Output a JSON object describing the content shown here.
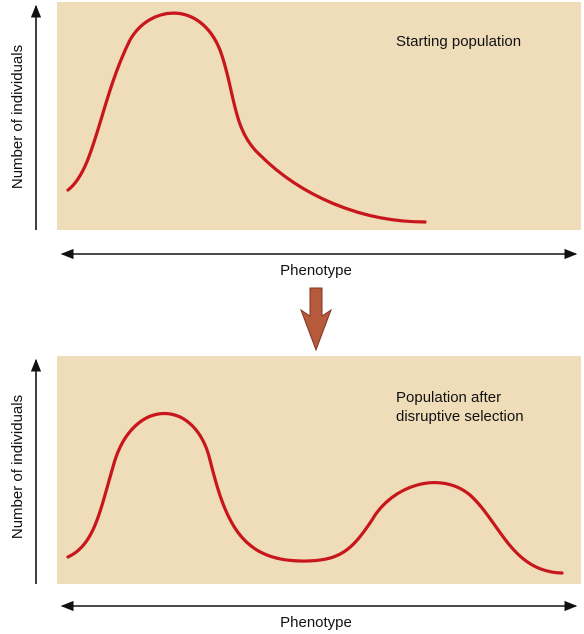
{
  "panels": [
    {
      "y_label": "Number of individuals",
      "x_label": "Phenotype",
      "caption": [
        "Starting population"
      ]
    },
    {
      "y_label": "Number of individuals",
      "x_label": "Phenotype",
      "caption": [
        "Population after",
        "disruptive selection"
      ]
    }
  ]
}
